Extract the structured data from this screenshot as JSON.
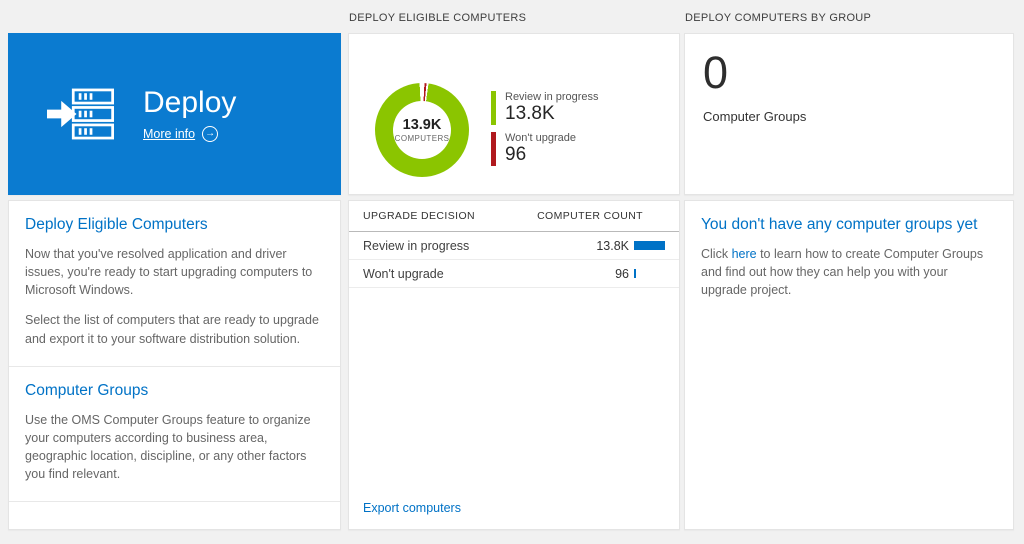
{
  "colors": {
    "accent_blue": "#0072c6",
    "tile_blue": "#0b7bd0",
    "background": "#f1f1f1"
  },
  "headers": {
    "middle": "DEPLOY ELIGIBLE COMPUTERS",
    "right": "DEPLOY COMPUTERS BY GROUP"
  },
  "deploy_tile": {
    "title": "Deploy",
    "more_info": "More info"
  },
  "left_panel": {
    "sections": [
      {
        "heading": "Deploy Eligible Computers",
        "paragraphs": [
          "Now that you've resolved application and driver issues, you're ready to start upgrading computers to Microsoft Windows.",
          "Select the list of computers that are ready to upgrade and export it to your software distribution solution."
        ]
      },
      {
        "heading": "Computer Groups",
        "paragraphs": [
          "Use the OMS Computer Groups feature to organize your computers according to business area, geographic location, discipline, or any other factors you find relevant."
        ]
      }
    ]
  },
  "chart_data": {
    "type": "pie",
    "title": "DEPLOY ELIGIBLE COMPUTERS",
    "center_value": "13.9K",
    "center_label": "COMPUTERS",
    "legend_position": "right",
    "series": [
      {
        "name": "Review in progress",
        "value": 13800,
        "display": "13.8K",
        "color": "#8bc500"
      },
      {
        "name": "Won't upgrade",
        "value": 96,
        "display": "96",
        "color": "#b0191e"
      }
    ]
  },
  "table": {
    "headers": [
      "UPGRADE DECISION",
      "COMPUTER COUNT"
    ],
    "bar_color": "#0072c6",
    "rows": [
      {
        "label": "Review in progress",
        "count": "13.8K",
        "bar_pct": 100
      },
      {
        "label": "Won't upgrade",
        "count": "96",
        "bar_pct": 1
      }
    ],
    "export_link": "Export computers"
  },
  "groups_tile": {
    "value": "0",
    "label": "Computer Groups"
  },
  "groups_panel": {
    "heading": "You don't have any computer groups yet",
    "text_before": "Click ",
    "link": "here",
    "text_after": " to learn how to create Computer Groups and find out how they can help you with your upgrade project."
  }
}
